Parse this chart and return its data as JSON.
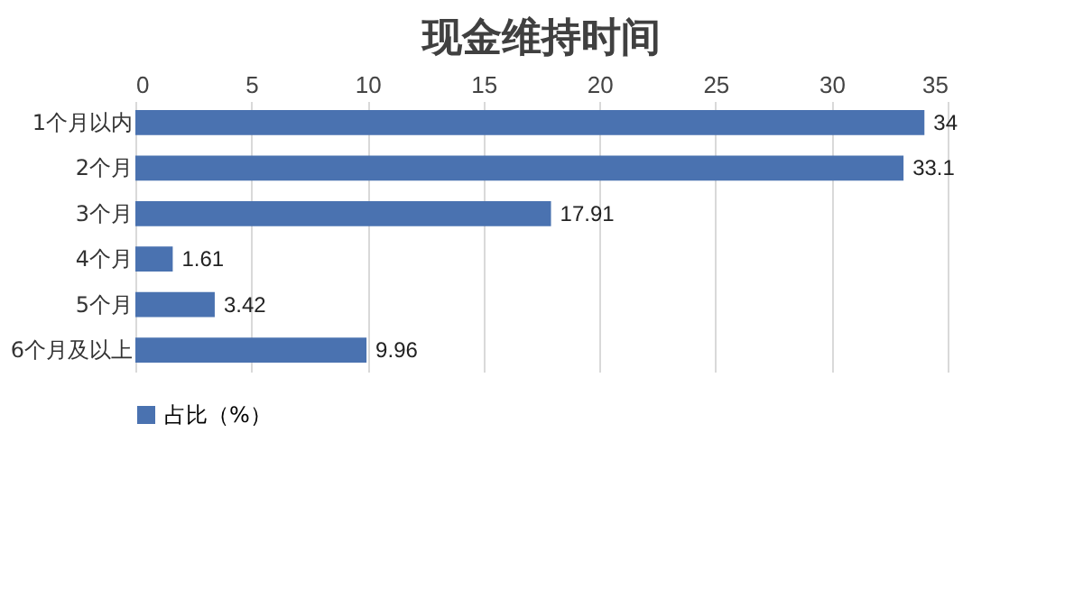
{
  "chart_data": {
    "type": "bar",
    "orientation": "horizontal",
    "title": "现金维持时间",
    "categories": [
      "1个月以内",
      "2个月",
      "3个月",
      "4个月",
      "5个月",
      "6个月及以上"
    ],
    "series": [
      {
        "name": "占比（%）",
        "color": "#4a72b0",
        "values": [
          34,
          33.1,
          17.91,
          1.61,
          3.42,
          9.96
        ]
      }
    ],
    "xlim": [
      0,
      35
    ],
    "xticks": [
      0,
      5,
      10,
      15,
      20,
      25,
      30,
      35
    ],
    "grid": "x",
    "legend": "bottom",
    "data_labels": true
  }
}
